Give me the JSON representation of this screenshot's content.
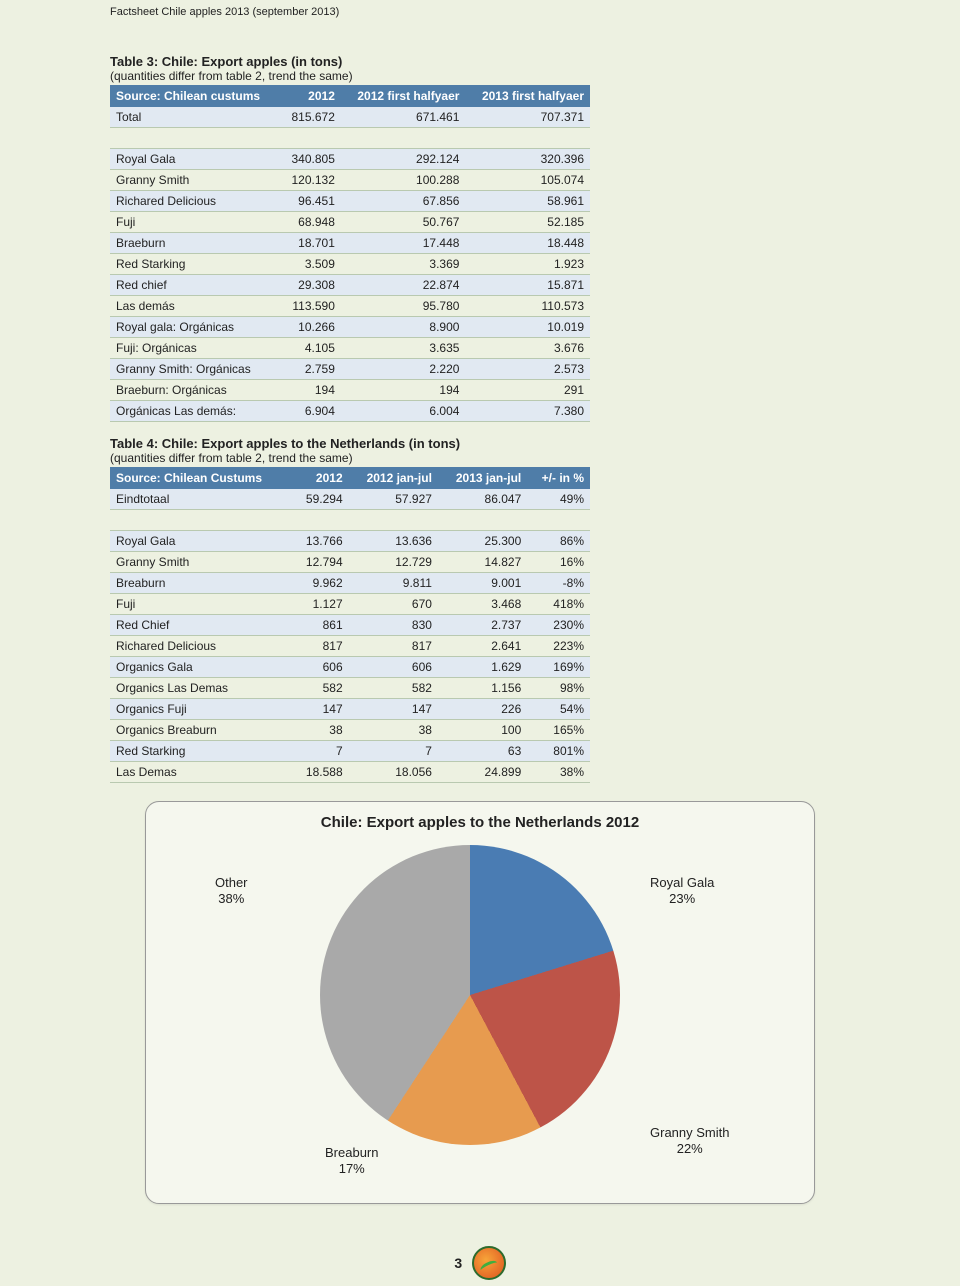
{
  "doc_header": "Factsheet Chile apples 2013 (september 2013)",
  "page_number": "3",
  "table3": {
    "title": "Table 3: Chile: Export apples (in tons)",
    "subtitle": "(quantities differ from table 2, trend the same)",
    "headers": [
      "Source: Chilean custums",
      "2012",
      "2012 first halfyaer",
      "2013 first halfyaer"
    ],
    "total_row": [
      "Total",
      "815.672",
      "671.461",
      "707.371"
    ],
    "rows": [
      [
        "Royal Gala",
        "340.805",
        "292.124",
        "320.396"
      ],
      [
        "Granny Smith",
        "120.132",
        "100.288",
        "105.074"
      ],
      [
        "Richared Delicious",
        "96.451",
        "67.856",
        "58.961"
      ],
      [
        "Fuji",
        "68.948",
        "50.767",
        "52.185"
      ],
      [
        "Braeburn",
        "18.701",
        "17.448",
        "18.448"
      ],
      [
        "Red Starking",
        "3.509",
        "3.369",
        "1.923"
      ],
      [
        "Red chief",
        "29.308",
        "22.874",
        "15.871"
      ],
      [
        "Las demás",
        "113.590",
        "95.780",
        "110.573"
      ],
      [
        "Royal gala: Orgánicas",
        "10.266",
        "8.900",
        "10.019"
      ],
      [
        "Fuji: Orgánicas",
        "4.105",
        "3.635",
        "3.676"
      ],
      [
        "Granny Smith: Orgánicas",
        "2.759",
        "2.220",
        "2.573"
      ],
      [
        "Braeburn: Orgánicas",
        "194",
        "194",
        "291"
      ],
      [
        "Orgánicas Las demás:",
        "6.904",
        "6.004",
        "7.380"
      ]
    ]
  },
  "table4": {
    "title": "Table 4: Chile: Export apples to the Netherlands (in tons)",
    "subtitle": "(quantities differ from table 2, trend the same)",
    "headers": [
      "Source: Chilean Custums",
      "2012",
      "2012 jan-jul",
      "2013 jan-jul",
      "+/- in %"
    ],
    "total_row": [
      "Eindtotaal",
      "59.294",
      "57.927",
      "86.047",
      "49%"
    ],
    "rows": [
      [
        "Royal Gala",
        "13.766",
        "13.636",
        "25.300",
        "86%"
      ],
      [
        "Granny Smith",
        "12.794",
        "12.729",
        "14.827",
        "16%"
      ],
      [
        "Breaburn",
        "9.962",
        "9.811",
        "9.001",
        "-8%"
      ],
      [
        "Fuji",
        "1.127",
        "670",
        "3.468",
        "418%"
      ],
      [
        "Red Chief",
        "861",
        "830",
        "2.737",
        "230%"
      ],
      [
        "Richared Delicious",
        "817",
        "817",
        "2.641",
        "223%"
      ],
      [
        "Organics Gala",
        "606",
        "606",
        "1.629",
        "169%"
      ],
      [
        "Organics Las Demas",
        "582",
        "582",
        "1.156",
        "98%"
      ],
      [
        "Organics Fuji",
        "147",
        "147",
        "226",
        "54%"
      ],
      [
        "Organics Breaburn",
        "38",
        "38",
        "100",
        "165%"
      ],
      [
        "Red Starking",
        "7",
        "7",
        "63",
        "801%"
      ],
      [
        "Las Demas",
        "18.588",
        "18.056",
        "24.899",
        "38%"
      ]
    ]
  },
  "chart": {
    "title": "Chile: Export apples to the Netherlands 2012",
    "type": "pie",
    "background_color": "#f5f7ee",
    "border_color": "#999999",
    "slices": [
      {
        "label": "Royal Gala",
        "pct": 23,
        "color": "#4a7cb3"
      },
      {
        "label": "Granny Smith",
        "pct": 22,
        "color": "#bd5448"
      },
      {
        "label": "Breaburn",
        "pct": 17,
        "color": "#e79b4f"
      },
      {
        "label": "Other",
        "pct": 38,
        "color": "#a9a9a9"
      }
    ],
    "label_fontsize": 13,
    "labels": {
      "other": "Other\n38%",
      "royal_gala": "Royal Gala\n23%",
      "granny_smith": "Granny Smith\n22%",
      "breaburn": "Breaburn\n17%"
    }
  }
}
